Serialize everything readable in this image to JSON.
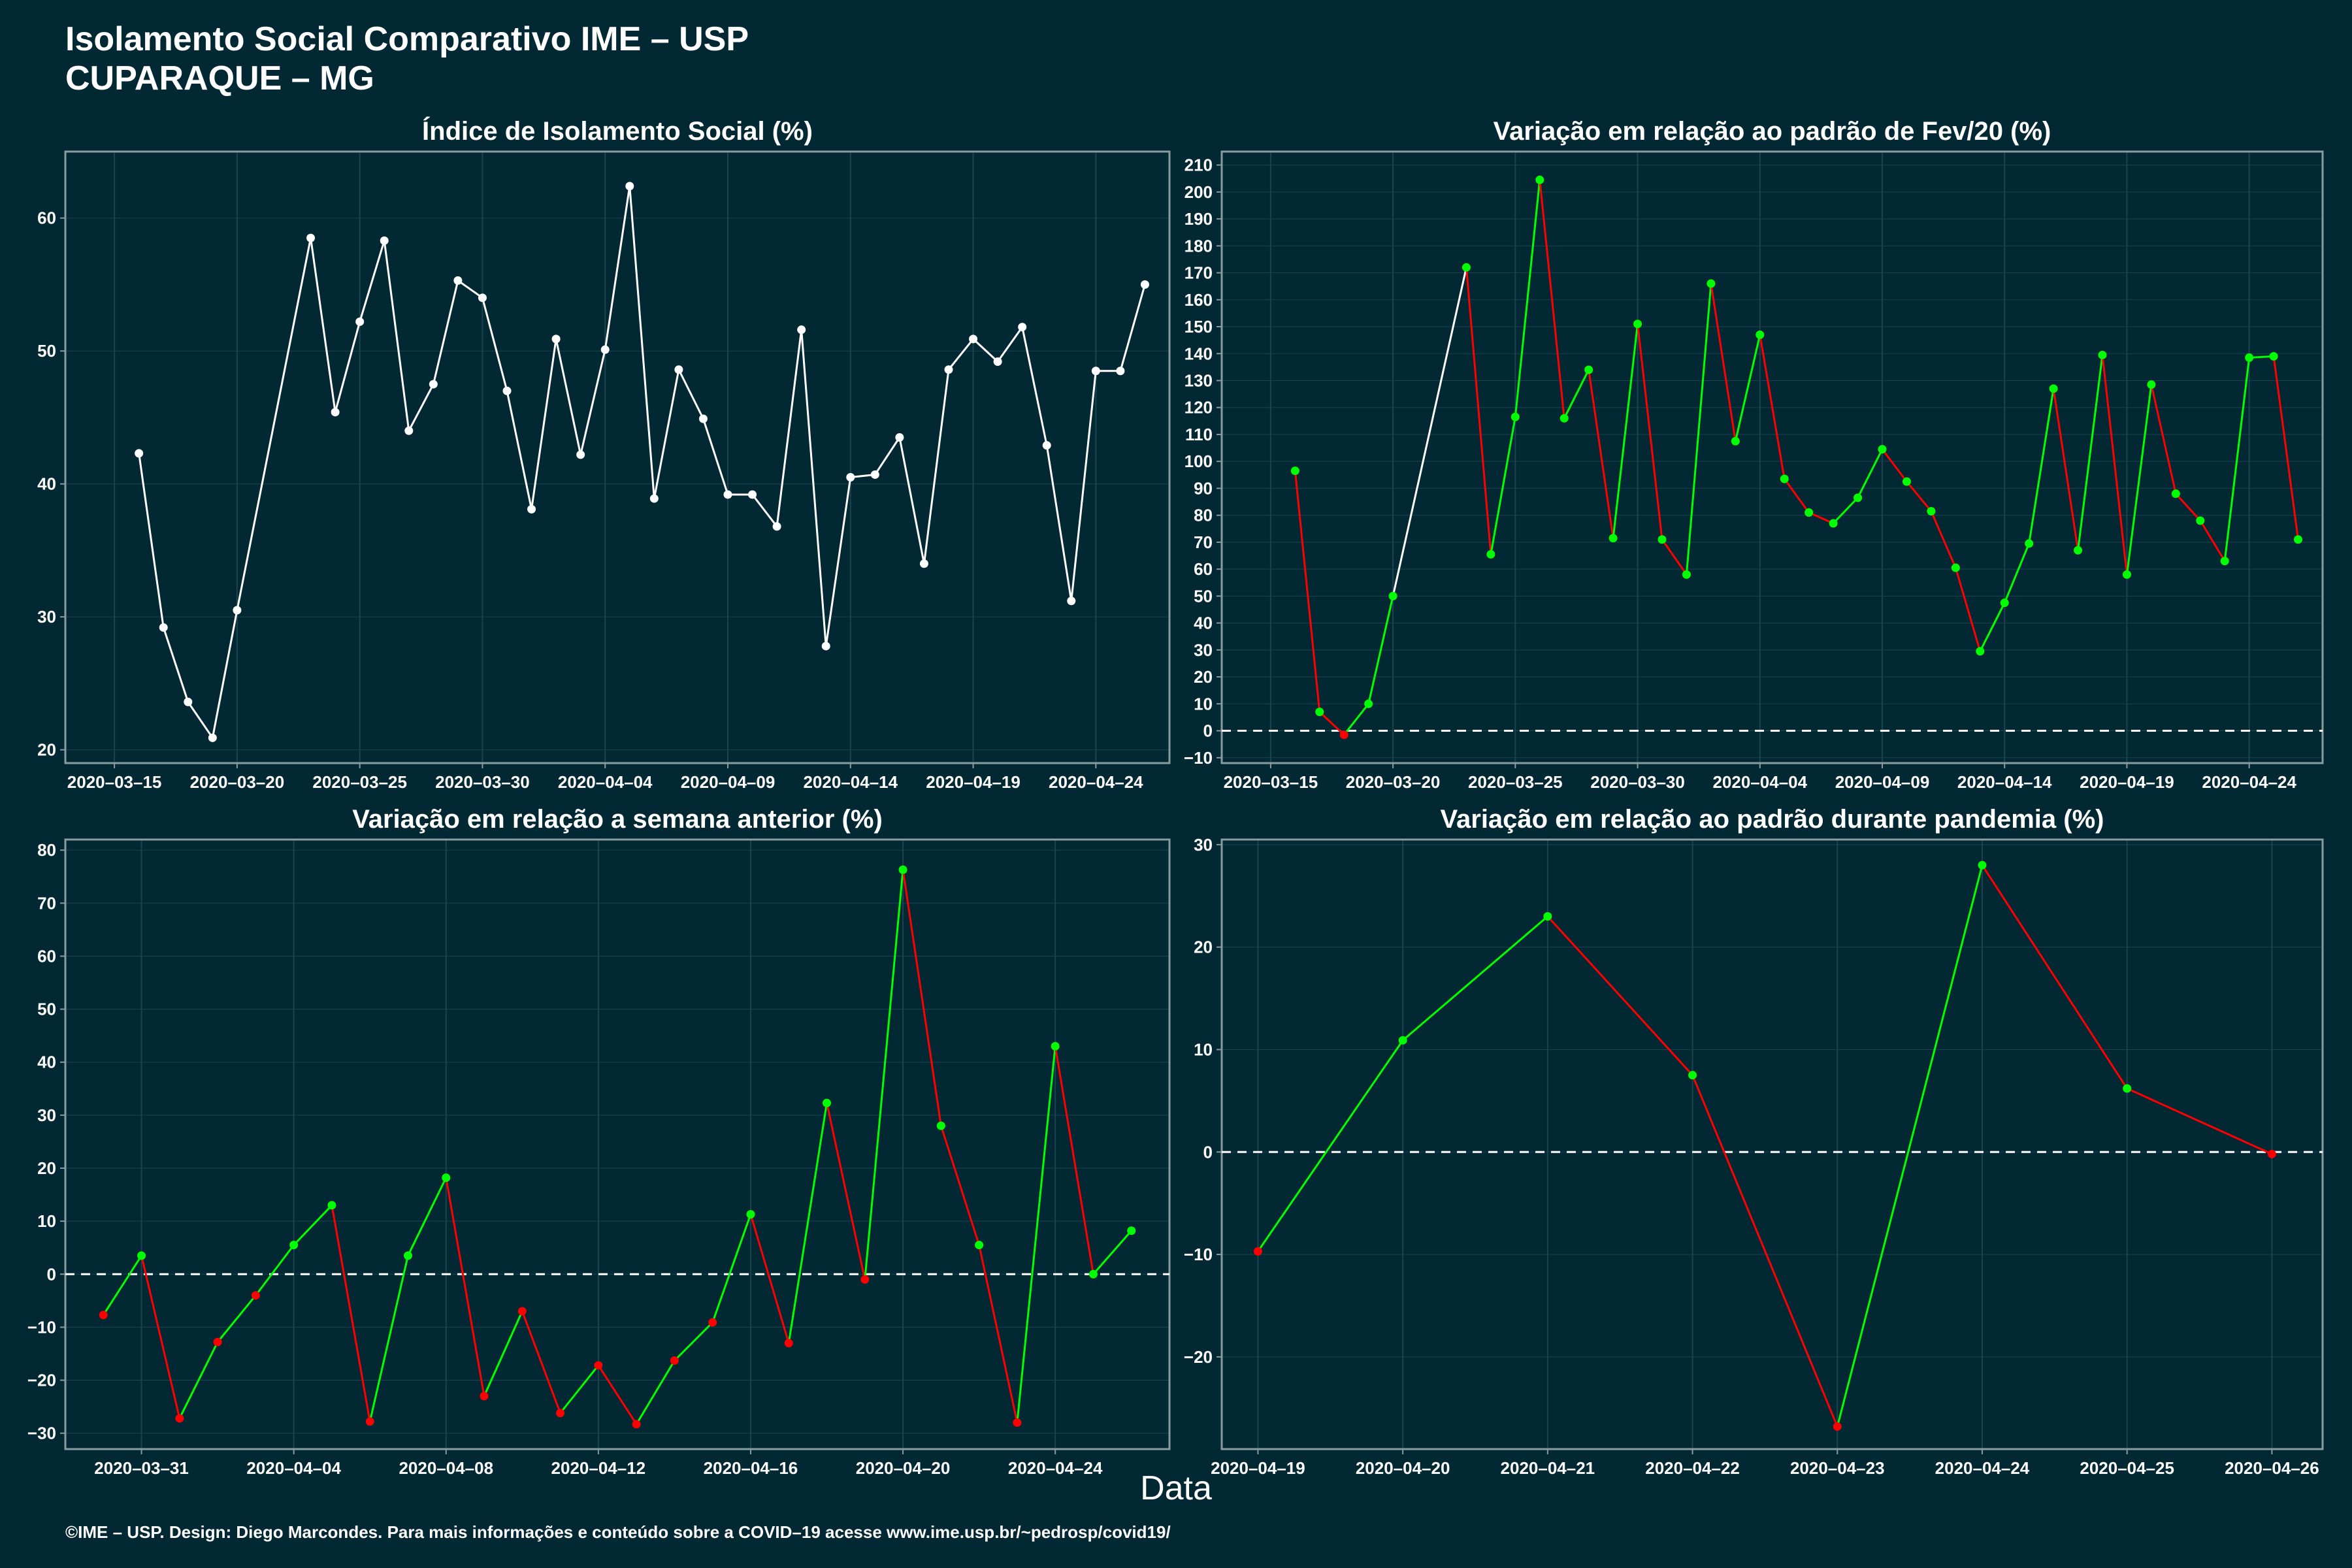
{
  "title": {
    "line1": "Isolamento Social Comparativo IME – USP",
    "line2": "CUPARAQUE – MG"
  },
  "x_caption": "Data",
  "footer": "©IME – USP. Design: Diego Marcondes. Para mais informações e conteúdo sobre a COVID–19 acesse www.ime.usp.br/~pedrosp/covid19/",
  "colors": {
    "background": "#022833",
    "neutral": "#ffffff",
    "positive": "#00ff00",
    "negative": "#ff0000",
    "grid": "#1b4350",
    "axis": "#8a9ba0"
  },
  "chart_data": [
    {
      "type": "line",
      "title": "Índice de Isolamento Social (%)",
      "ylim": [
        19,
        65
      ],
      "yticks": [
        20,
        30,
        40,
        50,
        60
      ],
      "xlim": [
        "2020-03-13",
        "2020-04-27"
      ],
      "xticks": [
        "2020-03-15",
        "2020-03-20",
        "2020-03-25",
        "2020-03-30",
        "2020-04-04",
        "2020-04-09",
        "2020-04-14",
        "2020-04-19",
        "2020-04-24"
      ],
      "color_mode": "neutral",
      "zero_line": false,
      "x": [
        "2020-03-16",
        "2020-03-17",
        "2020-03-18",
        "2020-03-19",
        "2020-03-20",
        "2020-03-23",
        "2020-03-24",
        "2020-03-25",
        "2020-03-26",
        "2020-03-27",
        "2020-03-28",
        "2020-03-29",
        "2020-03-30",
        "2020-03-31",
        "2020-04-01",
        "2020-04-02",
        "2020-04-03",
        "2020-04-04",
        "2020-04-05",
        "2020-04-06",
        "2020-04-07",
        "2020-04-08",
        "2020-04-09",
        "2020-04-10",
        "2020-04-11",
        "2020-04-12",
        "2020-04-13",
        "2020-04-14",
        "2020-04-15",
        "2020-04-16",
        "2020-04-17",
        "2020-04-18",
        "2020-04-19",
        "2020-04-20",
        "2020-04-21",
        "2020-04-22",
        "2020-04-23",
        "2020-04-24",
        "2020-04-25",
        "2020-04-26"
      ],
      "values": [
        42.3,
        29.2,
        23.6,
        20.9,
        30.5,
        58.5,
        45.4,
        52.2,
        58.3,
        44.0,
        47.5,
        55.3,
        54.0,
        47.0,
        38.1,
        50.9,
        42.2,
        50.1,
        62.4,
        38.9,
        48.6,
        44.9,
        39.2,
        39.2,
        36.8,
        51.6,
        27.8,
        40.5,
        40.7,
        43.5,
        34.0,
        48.6,
        50.9,
        49.2,
        51.8,
        42.9,
        31.2,
        48.5,
        48.5,
        55.0
      ]
    },
    {
      "type": "line",
      "title": "Variação em relação ao padrão de Fev/20 (%)",
      "ylim": [
        -12,
        215
      ],
      "yticks": [
        -10,
        0,
        10,
        20,
        30,
        40,
        50,
        60,
        70,
        80,
        90,
        100,
        110,
        120,
        130,
        140,
        150,
        160,
        170,
        180,
        190,
        200,
        210
      ],
      "xlim": [
        "2020-03-13",
        "2020-04-27"
      ],
      "xticks": [
        "2020-03-15",
        "2020-03-20",
        "2020-03-25",
        "2020-03-30",
        "2020-04-04",
        "2020-04-09",
        "2020-04-14",
        "2020-04-19",
        "2020-04-24"
      ],
      "color_mode": "sign",
      "zero_line": true,
      "x": [
        "2020-03-16",
        "2020-03-17",
        "2020-03-18",
        "2020-03-19",
        "2020-03-20",
        "2020-03-23",
        "2020-03-24",
        "2020-03-25",
        "2020-03-26",
        "2020-03-27",
        "2020-03-28",
        "2020-03-29",
        "2020-03-30",
        "2020-03-31",
        "2020-04-01",
        "2020-04-02",
        "2020-04-03",
        "2020-04-04",
        "2020-04-05",
        "2020-04-06",
        "2020-04-07",
        "2020-04-08",
        "2020-04-09",
        "2020-04-10",
        "2020-04-11",
        "2020-04-12",
        "2020-04-13",
        "2020-04-14",
        "2020-04-15",
        "2020-04-16",
        "2020-04-17",
        "2020-04-18",
        "2020-04-19",
        "2020-04-20",
        "2020-04-21",
        "2020-04-22",
        "2020-04-23",
        "2020-04-24",
        "2020-04-25",
        "2020-04-26"
      ],
      "values": [
        96.5,
        7.0,
        -1.5,
        10.0,
        50.0,
        172.0,
        65.5,
        116.5,
        204.5,
        116.0,
        134.0,
        71.5,
        151.0,
        71.0,
        58.0,
        166.0,
        107.5,
        147.0,
        93.5,
        81.0,
        77.0,
        86.5,
        104.5,
        92.5,
        81.5,
        60.5,
        29.5,
        47.5,
        69.5,
        127.0,
        67.0,
        139.5,
        58.0,
        128.5,
        88.0,
        78.0,
        63.0,
        138.5,
        139.0,
        71.0
      ]
    },
    {
      "type": "line",
      "title": "Variação em relação a semana anterior (%)",
      "ylim": [
        -33,
        82
      ],
      "yticks": [
        -30,
        -20,
        -10,
        0,
        10,
        20,
        30,
        40,
        50,
        60,
        70,
        80
      ],
      "xlim": [
        "2020-03-29",
        "2020-04-27"
      ],
      "xticks": [
        "2020-03-31",
        "2020-04-04",
        "2020-04-08",
        "2020-04-12",
        "2020-04-16",
        "2020-04-20",
        "2020-04-24"
      ],
      "color_mode": "sign",
      "zero_line": true,
      "x": [
        "2020-03-30",
        "2020-03-31",
        "2020-04-01",
        "2020-04-02",
        "2020-04-03",
        "2020-04-04",
        "2020-04-05",
        "2020-04-06",
        "2020-04-07",
        "2020-04-08",
        "2020-04-09",
        "2020-04-10",
        "2020-04-11",
        "2020-04-12",
        "2020-04-13",
        "2020-04-14",
        "2020-04-15",
        "2020-04-16",
        "2020-04-17",
        "2020-04-18",
        "2020-04-19",
        "2020-04-20",
        "2020-04-21",
        "2020-04-22",
        "2020-04-23",
        "2020-04-24",
        "2020-04-25",
        "2020-04-26"
      ],
      "values": [
        -7.7,
        3.5,
        -27.2,
        -12.8,
        -4.0,
        5.5,
        13.0,
        -27.8,
        3.5,
        18.2,
        -23.0,
        -7.0,
        -26.2,
        -17.2,
        -28.3,
        -16.3,
        -9.1,
        11.3,
        -13.0,
        32.3,
        -1.0,
        76.3,
        28.0,
        5.5,
        -28.0,
        43.0,
        0.0,
        8.2
      ]
    },
    {
      "type": "line",
      "title": "Variação em relação ao padrão durante pandemia (%)",
      "ylim": [
        -29,
        30.5
      ],
      "yticks": [
        -20,
        -10,
        0,
        10,
        20,
        30
      ],
      "xlim": [
        "2020-04-18.75",
        "2020-04-26.35"
      ],
      "xticks": [
        "2020-04-19",
        "2020-04-20",
        "2020-04-21",
        "2020-04-22",
        "2020-04-23",
        "2020-04-24",
        "2020-04-25",
        "2020-04-26"
      ],
      "color_mode": "sign",
      "zero_line": true,
      "x": [
        "2020-04-19",
        "2020-04-20",
        "2020-04-21",
        "2020-04-22",
        "2020-04-23",
        "2020-04-24",
        "2020-04-25",
        "2020-04-26"
      ],
      "values": [
        -9.7,
        10.9,
        23.0,
        7.5,
        -26.8,
        28.0,
        6.2,
        -0.2
      ]
    }
  ]
}
